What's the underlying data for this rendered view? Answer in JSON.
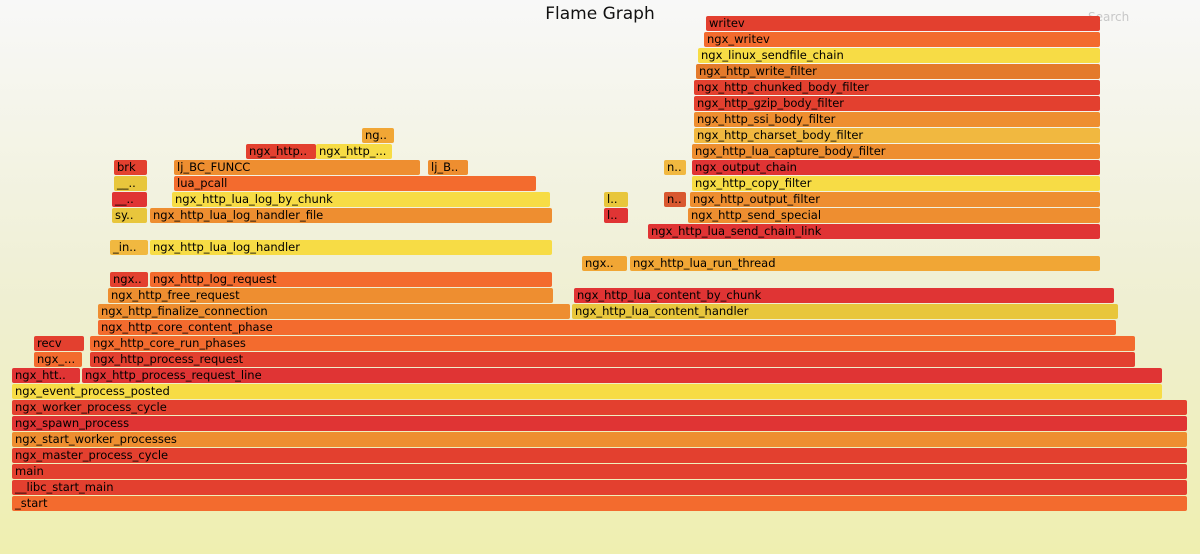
{
  "title": "Flame Graph",
  "search_label": "Search",
  "palette": [
    "#e3402f",
    "#f36b2e",
    "#ee8e30",
    "#f1a635",
    "#e8c63c",
    "#f7dc45",
    "#e03434",
    "#d95830",
    "#f1b840",
    "#e47a2b"
  ],
  "frames": [
    {
      "name": "_start"
    },
    {
      "name": "__libc_start_main"
    },
    {
      "name": "main"
    },
    {
      "name": "ngx_master_process_cycle"
    },
    {
      "name": "ngx_start_worker_processes"
    },
    {
      "name": "ngx_spawn_process"
    },
    {
      "name": "ngx_worker_process_cycle"
    },
    {
      "name": "ngx_event_process_posted"
    },
    {
      "name": "ngx_htt.."
    },
    {
      "name": "ngx_http_process_request_line"
    },
    {
      "name": "ngx_..."
    },
    {
      "name": "ngx_http_process_request"
    },
    {
      "name": "recv"
    },
    {
      "name": "ngx_http_core_run_phases"
    },
    {
      "name": "ngx_http_core_content_phase"
    },
    {
      "name": "ngx_http_finalize_connection"
    },
    {
      "name": "ngx_http_lua_content_handler"
    },
    {
      "name": "ngx_http_free_request"
    },
    {
      "name": "ngx_http_lua_content_by_chunk"
    },
    {
      "name": "ngx.."
    },
    {
      "name": "ngx_http_log_request"
    },
    {
      "name": "ngx.."
    },
    {
      "name": "ngx_http_lua_run_thread"
    },
    {
      "name": "_in.."
    },
    {
      "name": "ngx_http_lua_log_handler"
    },
    {
      "name": "ngx_http_lua_send_chain_link"
    },
    {
      "name": "sy.."
    },
    {
      "name": "ngx_http_lua_log_handler_file"
    },
    {
      "name": "l.."
    },
    {
      "name": "ngx_http_send_special"
    },
    {
      "name": "__.."
    },
    {
      "name": "ngx_http_lua_log_by_chunk"
    },
    {
      "name": "l.."
    },
    {
      "name": "n.."
    },
    {
      "name": "ngx_http_output_filter"
    },
    {
      "name": "__.."
    },
    {
      "name": "lua_pcall"
    },
    {
      "name": "ngx_http_copy_filter"
    },
    {
      "name": "brk"
    },
    {
      "name": "lj_BC_FUNCC"
    },
    {
      "name": "lj_B.."
    },
    {
      "name": "n.."
    },
    {
      "name": "ngx_output_chain"
    },
    {
      "name": "ngx_http.."
    },
    {
      "name": "ngx_http_..."
    },
    {
      "name": "ngx_http_lua_capture_body_filter"
    },
    {
      "name": "ng.."
    },
    {
      "name": "ngx_http_charset_body_filter"
    },
    {
      "name": "ngx_http_ssi_body_filter"
    },
    {
      "name": "ngx_http_gzip_body_filter"
    },
    {
      "name": "ngx_http_chunked_body_filter"
    },
    {
      "name": "ngx_http_write_filter"
    },
    {
      "name": "ngx_linux_sendfile_chain"
    },
    {
      "name": "ngx_writev"
    },
    {
      "name": "writev"
    }
  ]
}
